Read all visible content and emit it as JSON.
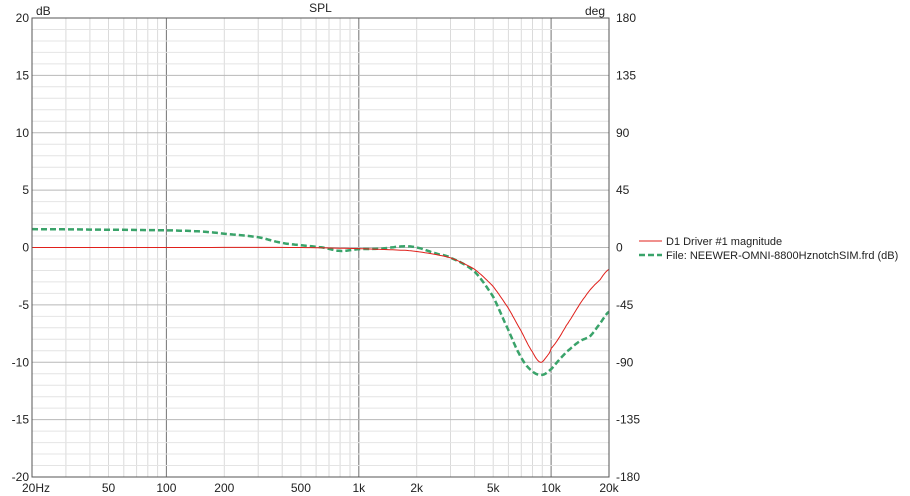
{
  "chart_data": {
    "type": "line",
    "title": "SPL",
    "ylabel_left": "dB",
    "ylabel_right": "deg",
    "x_scale": "log",
    "xlim": [
      20,
      20000
    ],
    "ylim": [
      -20,
      20
    ],
    "ylim_right": [
      -180,
      180
    ],
    "x_ticks": [
      {
        "value": 20,
        "label": "20Hz"
      },
      {
        "value": 50,
        "label": "50"
      },
      {
        "value": 100,
        "label": "100"
      },
      {
        "value": 200,
        "label": "200"
      },
      {
        "value": 500,
        "label": "500"
      },
      {
        "value": 1000,
        "label": "1k"
      },
      {
        "value": 2000,
        "label": "2k"
      },
      {
        "value": 5000,
        "label": "5k"
      },
      {
        "value": 10000,
        "label": "10k"
      },
      {
        "value": 20000,
        "label": "20k"
      }
    ],
    "y_ticks": [
      {
        "value": 20,
        "label": "20"
      },
      {
        "value": 15,
        "label": "15"
      },
      {
        "value": 10,
        "label": "10"
      },
      {
        "value": 5,
        "label": "5"
      },
      {
        "value": 0,
        "label": "0"
      },
      {
        "value": -5,
        "label": "-5"
      },
      {
        "value": -10,
        "label": "-10"
      },
      {
        "value": -15,
        "label": "-15"
      },
      {
        "value": -20,
        "label": "-20"
      }
    ],
    "y_ticks_right": [
      {
        "value": 180,
        "label": "180"
      },
      {
        "value": 135,
        "label": "135"
      },
      {
        "value": 90,
        "label": "90"
      },
      {
        "value": 45,
        "label": "45"
      },
      {
        "value": 0,
        "label": "0"
      },
      {
        "value": -45,
        "label": "-45"
      },
      {
        "value": -90,
        "label": "-90"
      },
      {
        "value": -135,
        "label": "-135"
      },
      {
        "value": -180,
        "label": "-180"
      }
    ],
    "grid": true,
    "legend_position": "right",
    "series": [
      {
        "name": "D1 Driver #1 magnitude",
        "color": "#e0201b",
        "style": "solid",
        "points": [
          [
            20,
            0
          ],
          [
            100,
            0
          ],
          [
            500,
            0
          ],
          [
            1000,
            -0.1
          ],
          [
            1500,
            -0.2
          ],
          [
            2000,
            -0.35
          ],
          [
            3000,
            -0.9
          ],
          [
            4000,
            -1.9
          ],
          [
            5000,
            -3.4
          ],
          [
            6000,
            -5.3
          ],
          [
            7000,
            -7.3
          ],
          [
            8000,
            -9.1
          ],
          [
            8800,
            -10
          ],
          [
            9500,
            -9.5
          ],
          [
            10000,
            -8.8
          ],
          [
            12000,
            -6.8
          ],
          [
            15000,
            -4.3
          ],
          [
            18000,
            -2.8
          ],
          [
            20000,
            -1.9
          ]
        ]
      },
      {
        "name": "File: NEEWER-OMNI-8800HznotchSIM.frd (dB)",
        "color": "#3aa36a",
        "style": "dashed",
        "points": [
          [
            20,
            1.6
          ],
          [
            50,
            1.55
          ],
          [
            100,
            1.5
          ],
          [
            150,
            1.4
          ],
          [
            200,
            1.2
          ],
          [
            300,
            0.9
          ],
          [
            400,
            0.4
          ],
          [
            500,
            0.2
          ],
          [
            650,
            0.0
          ],
          [
            800,
            -0.3
          ],
          [
            1000,
            -0.15
          ],
          [
            1300,
            -0.1
          ],
          [
            1700,
            0.1
          ],
          [
            2000,
            0.0
          ],
          [
            2500,
            -0.5
          ],
          [
            3000,
            -0.9
          ],
          [
            4000,
            -2.1
          ],
          [
            5000,
            -4.3
          ],
          [
            6000,
            -7.2
          ],
          [
            7000,
            -9.6
          ],
          [
            8000,
            -10.8
          ],
          [
            9000,
            -11.1
          ],
          [
            10000,
            -10.6
          ],
          [
            11000,
            -9.8
          ],
          [
            12000,
            -9.1
          ],
          [
            14000,
            -8.2
          ],
          [
            16000,
            -7.7
          ],
          [
            18000,
            -6.6
          ],
          [
            20000,
            -5.6
          ]
        ]
      }
    ]
  }
}
